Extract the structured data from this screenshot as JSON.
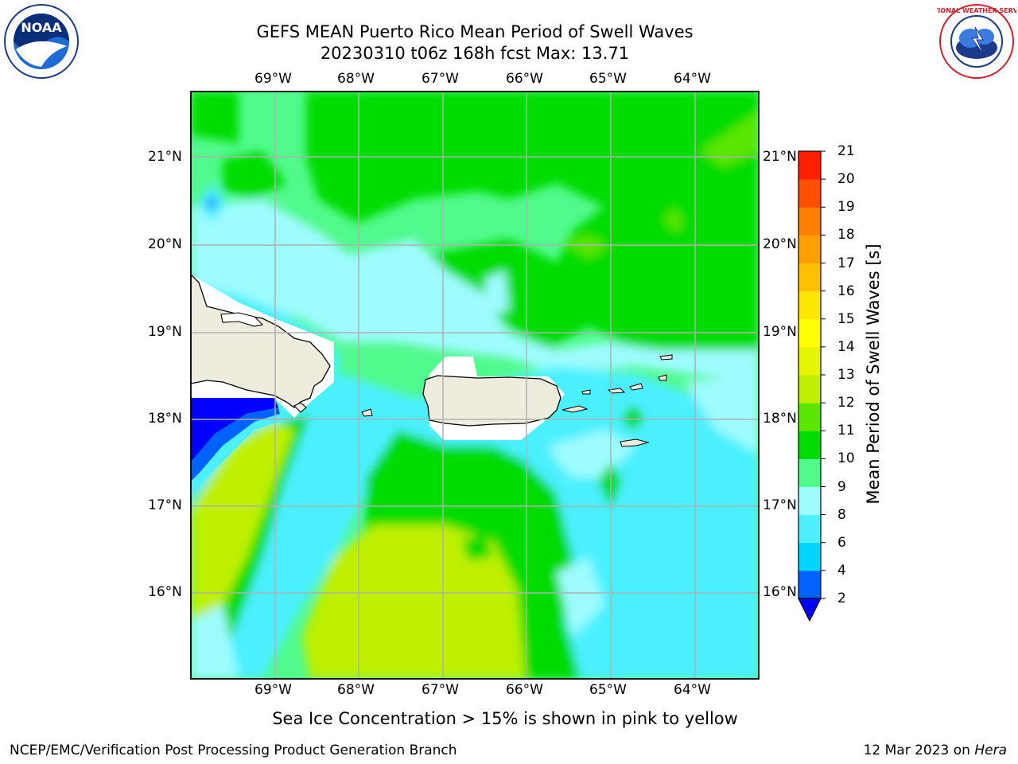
{
  "title": {
    "line1": "GEFS MEAN Puerto Rico Mean Period of Swell Waves",
    "line2": "20230310 t06z 168h fcst   Max: 13.71"
  },
  "map": {
    "lon_labels": [
      "69°W",
      "68°W",
      "67°W",
      "66°W",
      "65°W",
      "64°W"
    ],
    "lat_labels": [
      "21°N",
      "20°N",
      "19°N",
      "18°N",
      "17°N",
      "16°N"
    ]
  },
  "colorbar": {
    "title": "Mean Period of Swell Waves [s]",
    "levels": [
      "2",
      "4",
      "6",
      "8",
      "9",
      "10",
      "11",
      "12",
      "13",
      "14",
      "15",
      "16",
      "17",
      "18",
      "19",
      "20",
      "21"
    ],
    "colors": [
      "#0063ff",
      "#00d4ff",
      "#4cf0ff",
      "#9efcff",
      "#50fa8c",
      "#00dc00",
      "#5ae600",
      "#bef000",
      "#e6f500",
      "#ffff00",
      "#ffe600",
      "#ffc000",
      "#ffa000",
      "#ff8000",
      "#ff5000",
      "#ff2000",
      "#ff0000"
    ],
    "extend_color": "#0000ff"
  },
  "note": "Sea Ice Concentration > 15% is shown in pink to yellow",
  "footer": {
    "left": "NCEP/EMC/Verification Post Processing Product Generation Branch",
    "date": "12 Mar 2023 on ",
    "host": "Hera"
  },
  "logos": {
    "noaa_text": "NOAA",
    "nws_text": "NATIONAL WEATHER SERVICE"
  }
}
